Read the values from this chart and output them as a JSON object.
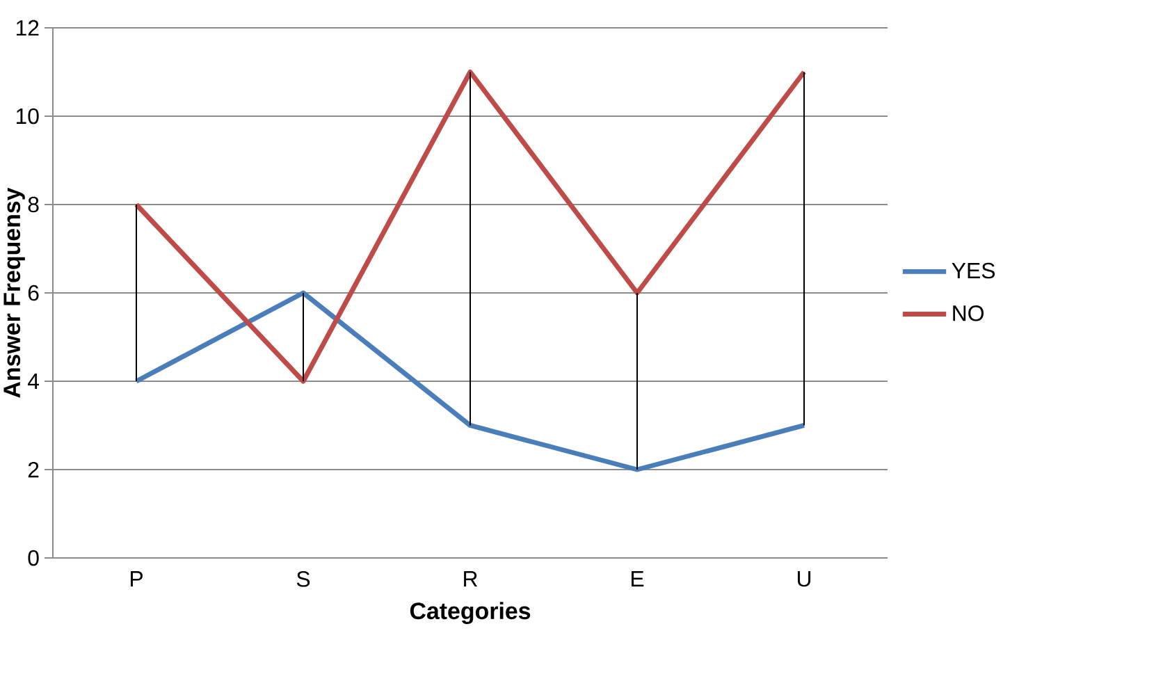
{
  "chart_data": {
    "type": "line",
    "xlabel": "Categories",
    "ylabel": "Answer Frequensy",
    "categories": [
      "P",
      "S",
      "R",
      "E",
      "U"
    ],
    "series": [
      {
        "name": "YES",
        "color": "#4a7ebb",
        "values": [
          4,
          6,
          3,
          2,
          3
        ],
        "errors": [
          [
            4,
            8
          ],
          [
            4,
            6
          ],
          [
            3,
            11
          ],
          [
            2,
            6
          ],
          [
            3,
            11
          ]
        ]
      },
      {
        "name": "NO",
        "color": "#be4b48",
        "values": [
          8,
          4,
          11,
          6,
          11
        ]
      }
    ],
    "ylim": [
      0,
      12
    ],
    "yticks": [
      0,
      2,
      4,
      6,
      8,
      10,
      12
    ],
    "grid": "y",
    "legend": "right",
    "marker": "none",
    "line_style": "solid"
  }
}
